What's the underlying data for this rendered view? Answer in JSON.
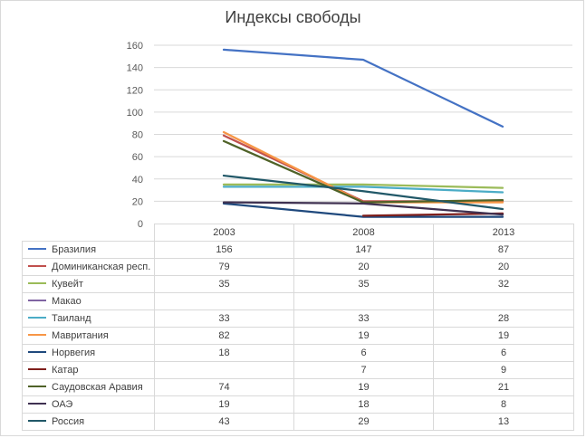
{
  "chart_data": {
    "type": "line",
    "title": "Индексы свободы",
    "categories": [
      "2003",
      "2008",
      "2013"
    ],
    "ylim": [
      0,
      160
    ],
    "yticks": [
      0,
      20,
      40,
      60,
      80,
      100,
      120,
      140,
      160
    ],
    "grid": true,
    "legend": "data table below chart",
    "series": [
      {
        "name": "Бразилия",
        "color": "#4472c4",
        "values": [
          156,
          147,
          87
        ],
        "display": [
          "156",
          "147",
          "87"
        ]
      },
      {
        "name": "Доминиканская респ.",
        "color": "#c0504d",
        "values": [
          79,
          20,
          20
        ],
        "display": [
          "79",
          "20",
          "20"
        ]
      },
      {
        "name": "Кувейт",
        "color": "#9bbb59",
        "values": [
          35,
          35,
          32
        ],
        "display": [
          "35",
          "35",
          "32"
        ]
      },
      {
        "name": "Макао",
        "color": "#8064a2",
        "values": [
          null,
          null,
          null
        ],
        "display": [
          "",
          "",
          ""
        ]
      },
      {
        "name": "Таиланд",
        "color": "#4bacc6",
        "values": [
          33,
          33,
          28
        ],
        "display": [
          "33",
          "33",
          "28"
        ]
      },
      {
        "name": "Мавритания",
        "color": "#f79646",
        "values": [
          82,
          19,
          19
        ],
        "display": [
          "82",
          "19",
          "19"
        ]
      },
      {
        "name": "Норвегия",
        "color": "#1f497d",
        "values": [
          18,
          6,
          6
        ],
        "display": [
          "18",
          "6",
          "6"
        ]
      },
      {
        "name": "Катар",
        "color": "#7f1f1c",
        "values": [
          null,
          7,
          9
        ],
        "display": [
          "",
          "7",
          "9"
        ]
      },
      {
        "name": "Саудовская Аравия",
        "color": "#4f6228",
        "values": [
          74,
          19,
          21
        ],
        "display": [
          "74",
          "19",
          "21"
        ]
      },
      {
        "name": "ОАЭ",
        "color": "#3f3151",
        "values": [
          19,
          18,
          8
        ],
        "display": [
          "19",
          "18",
          "8"
        ]
      },
      {
        "name": "Россия",
        "color": "#215868",
        "values": [
          43,
          29,
          13
        ],
        "display": [
          "43",
          "29",
          "13"
        ]
      }
    ]
  }
}
